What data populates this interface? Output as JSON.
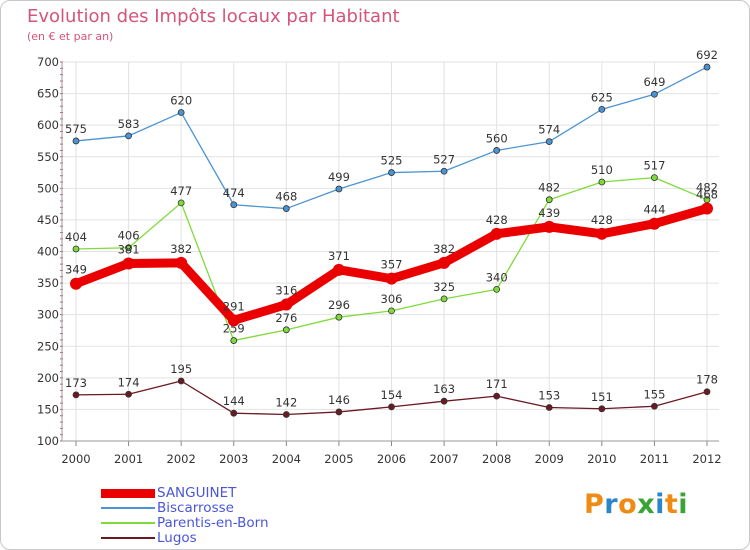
{
  "chart_data": {
    "type": "line",
    "title": "Evolution des Impôts locaux par Habitant",
    "subtitle": "(en € et par an)",
    "x": [
      "2000",
      "2001",
      "2002",
      "2003",
      "2004",
      "2005",
      "2006",
      "2007",
      "2008",
      "2009",
      "2010",
      "2011",
      "2012"
    ],
    "ylim": [
      100,
      700
    ],
    "yticks": [
      100,
      150,
      200,
      250,
      300,
      350,
      400,
      450,
      500,
      550,
      600,
      650,
      700
    ],
    "grid": true,
    "series": [
      {
        "name": "Lugos",
        "color": "#6b1a24",
        "values": [
          173,
          174,
          195,
          144,
          142,
          146,
          154,
          163,
          171,
          153,
          151,
          155,
          178
        ]
      },
      {
        "name": "Parentis-en-Born",
        "color": "#7fdb3a",
        "values": [
          404,
          406,
          477,
          259,
          276,
          296,
          306,
          325,
          340,
          482,
          510,
          517,
          482
        ]
      },
      {
        "name": "Biscarrosse",
        "color": "#4b94d4",
        "values": [
          575,
          583,
          620,
          474,
          468,
          499,
          525,
          527,
          560,
          574,
          625,
          649,
          692
        ]
      },
      {
        "name": "SANGUINET",
        "color": "#ea0000",
        "values": [
          349,
          381,
          382,
          291,
          316,
          371,
          357,
          382,
          428,
          439,
          428,
          444,
          468
        ]
      }
    ],
    "legend": [
      "SANGUINET",
      "Biscarrosse",
      "Parentis-en-Born",
      "Lugos"
    ]
  },
  "logo": {
    "letters": [
      "P",
      "r",
      "o",
      "x",
      "i",
      "t",
      "i"
    ],
    "colors": [
      "#ef8a12",
      "#2b86c9",
      "#ef8a12",
      "#3aa335",
      "#2b86c9",
      "#ef8a12",
      "#3aa335"
    ]
  }
}
